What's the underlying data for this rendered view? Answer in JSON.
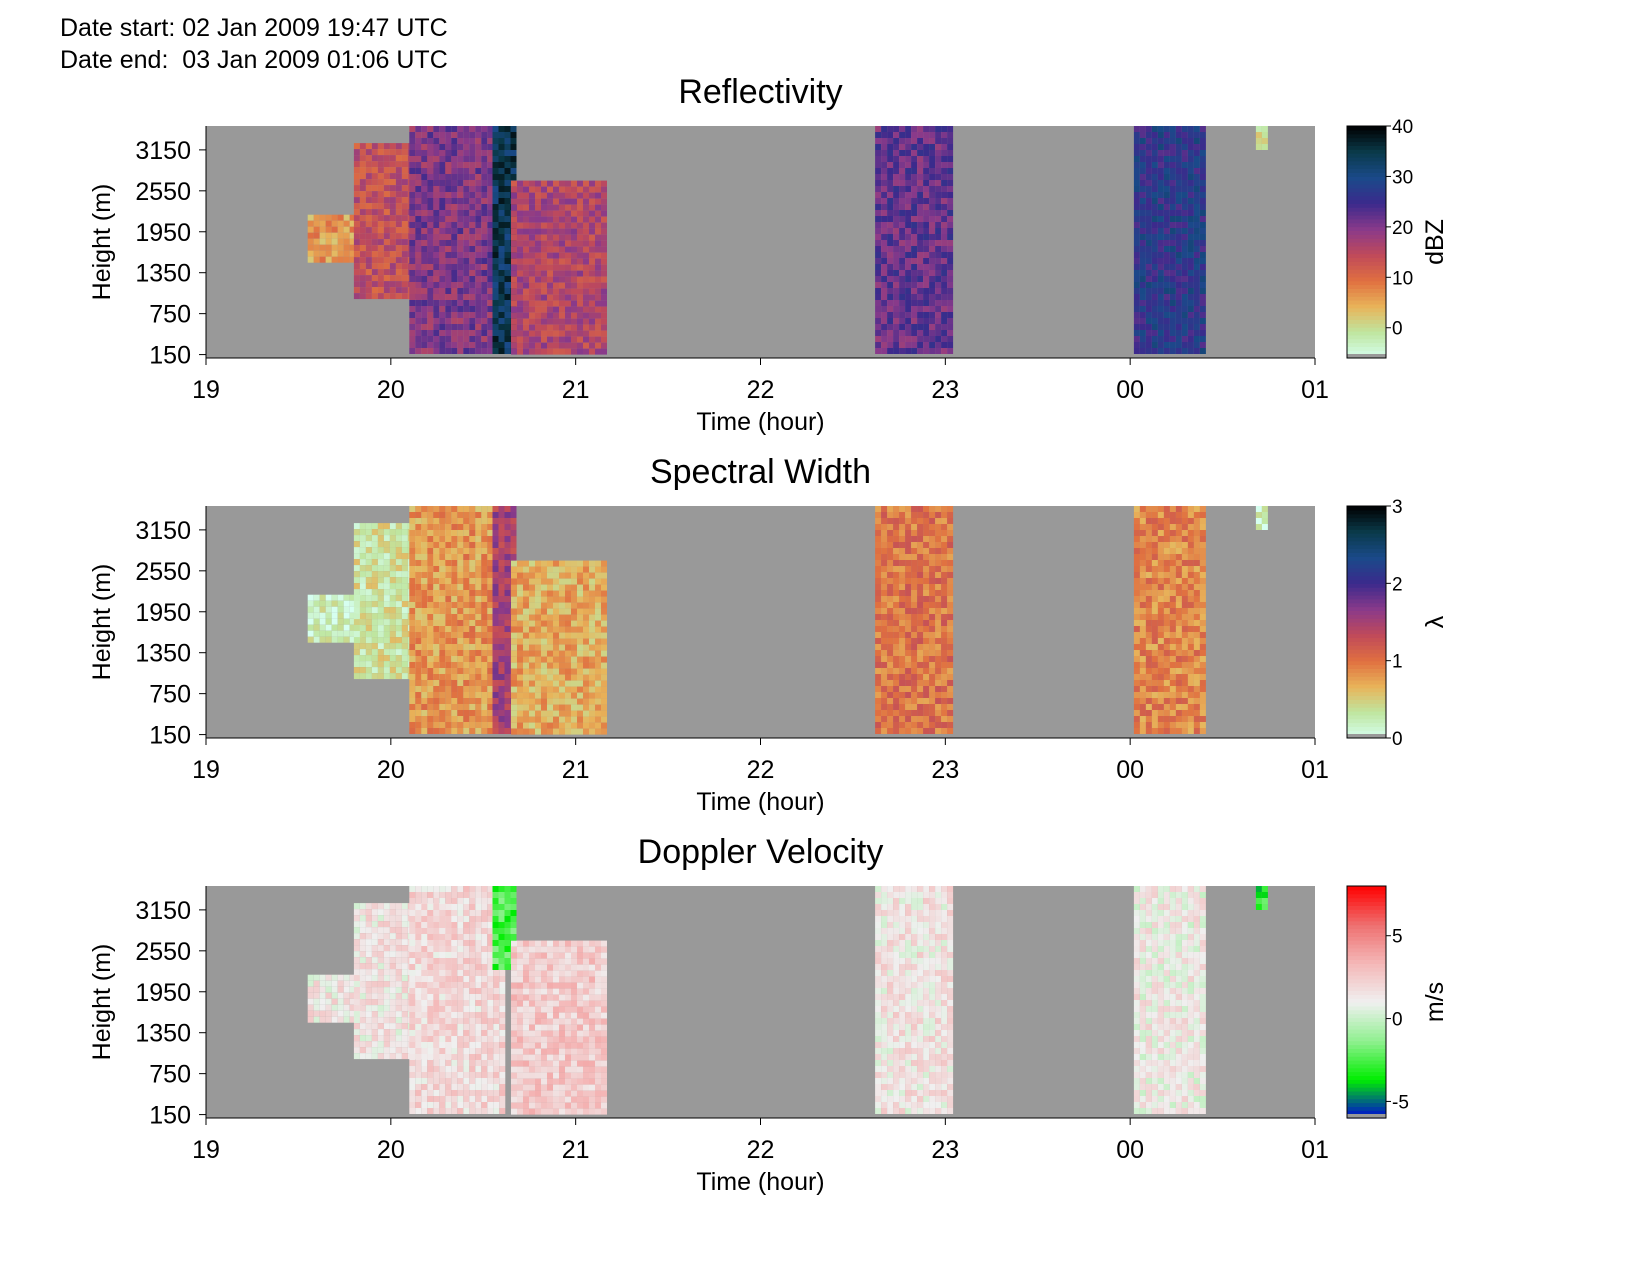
{
  "header": {
    "date_start": "Date start: 02 Jan 2009 19:47 UTC",
    "date_end": "Date end:  03 Jan 2009 01:06 UTC"
  },
  "colors": {
    "background": "#999999",
    "reflectivity_scale": [
      "#d6fff0",
      "#bfe6a0",
      "#e8b45a",
      "#e07040",
      "#c04a5a",
      "#8a3a8a",
      "#3c2a8c",
      "#1a4a8a",
      "#0a3a4a",
      "#000000"
    ],
    "width_scale": [
      "#d6fff0",
      "#bfe6a0",
      "#e8b45a",
      "#e07040",
      "#c04a5a",
      "#8a3a8a",
      "#3c2a8c",
      "#1a4a8a",
      "#0a3a4a",
      "#000000"
    ],
    "velocity_scale": [
      "#0000dd",
      "#00ee00",
      "#90f090",
      "#f0f0f0",
      "#f4b8b8",
      "#ee7070",
      "#ff0000"
    ]
  },
  "chart_data": [
    {
      "type": "heatmap",
      "title": "Reflectivity",
      "xlabel": "Time (hour)",
      "ylabel": "Height (m)",
      "x_ticks": [
        "19",
        "20",
        "21",
        "22",
        "23",
        "00",
        "01"
      ],
      "y_ticks": [
        150,
        750,
        1350,
        1950,
        2550,
        3150
      ],
      "xlim": [
        19.0,
        25.0
      ],
      "ylim": [
        100,
        3500
      ],
      "colorbar": {
        "label": "dBZ",
        "min": -6,
        "max": 40,
        "ticks": [
          0,
          10,
          20,
          30,
          40
        ]
      },
      "echoes": [
        {
          "t_start": 19.55,
          "t_end": 19.82,
          "h_bottom": 1500,
          "h_top": 2200,
          "value": 6
        },
        {
          "t_start": 19.8,
          "t_end": 20.35,
          "h_bottom": 1000,
          "h_top": 3250,
          "value": 14
        },
        {
          "t_start": 20.1,
          "t_end": 20.6,
          "h_bottom": 200,
          "h_top": 3500,
          "value": 20
        },
        {
          "t_start": 20.55,
          "t_end": 20.65,
          "h_bottom": 200,
          "h_top": 3500,
          "value": 34
        },
        {
          "t_start": 20.65,
          "t_end": 21.15,
          "h_bottom": 200,
          "h_top": 2700,
          "value": 16
        },
        {
          "t_start": 22.62,
          "t_end": 23.02,
          "h_bottom": 200,
          "h_top": 3500,
          "value": 22
        },
        {
          "t_start": 24.02,
          "t_end": 24.4,
          "h_bottom": 200,
          "h_top": 3500,
          "value": 27
        },
        {
          "t_start": 24.68,
          "t_end": 24.72,
          "h_bottom": 3200,
          "h_top": 3500,
          "value": 2
        }
      ]
    },
    {
      "type": "heatmap",
      "title": "Spectral Width",
      "xlabel": "Time (hour)",
      "ylabel": "Height (m)",
      "x_ticks": [
        "19",
        "20",
        "21",
        "22",
        "23",
        "00",
        "01"
      ],
      "y_ticks": [
        150,
        750,
        1350,
        1950,
        2550,
        3150
      ],
      "xlim": [
        19.0,
        25.0
      ],
      "ylim": [
        100,
        3500
      ],
      "colorbar": {
        "label": "λ",
        "min": 0,
        "max": 3,
        "ticks": [
          0,
          1,
          2,
          3
        ]
      },
      "echoes": [
        {
          "t_start": 19.55,
          "t_end": 19.82,
          "h_bottom": 1500,
          "h_top": 2200,
          "value": 0.2
        },
        {
          "t_start": 19.8,
          "t_end": 20.35,
          "h_bottom": 1000,
          "h_top": 3250,
          "value": 0.35
        },
        {
          "t_start": 20.1,
          "t_end": 20.6,
          "h_bottom": 200,
          "h_top": 3500,
          "value": 0.8
        },
        {
          "t_start": 20.55,
          "t_end": 20.65,
          "h_bottom": 200,
          "h_top": 3500,
          "value": 1.5
        },
        {
          "t_start": 20.65,
          "t_end": 21.15,
          "h_bottom": 200,
          "h_top": 2700,
          "value": 0.7
        },
        {
          "t_start": 22.62,
          "t_end": 23.02,
          "h_bottom": 200,
          "h_top": 3500,
          "value": 1.0
        },
        {
          "t_start": 24.02,
          "t_end": 24.4,
          "h_bottom": 200,
          "h_top": 3500,
          "value": 0.9
        },
        {
          "t_start": 24.68,
          "t_end": 24.72,
          "h_bottom": 3200,
          "h_top": 3500,
          "value": 0.2
        }
      ]
    },
    {
      "type": "heatmap",
      "title": "Doppler Velocity",
      "xlabel": "Time (hour)",
      "ylabel": "Height (m)",
      "x_ticks": [
        "19",
        "20",
        "21",
        "22",
        "23",
        "00",
        "01"
      ],
      "y_ticks": [
        150,
        750,
        1350,
        1950,
        2550,
        3150
      ],
      "xlim": [
        19.0,
        25.0
      ],
      "ylim": [
        100,
        3500
      ],
      "colorbar": {
        "label": "m/s",
        "min": -6,
        "max": 8,
        "ticks": [
          -5,
          0,
          5
        ]
      },
      "echoes": [
        {
          "t_start": 19.55,
          "t_end": 19.82,
          "h_bottom": 1500,
          "h_top": 2200,
          "value": 1.5
        },
        {
          "t_start": 19.8,
          "t_end": 20.35,
          "h_bottom": 1000,
          "h_top": 3250,
          "value": 1.5
        },
        {
          "t_start": 20.1,
          "t_end": 20.6,
          "h_bottom": 200,
          "h_top": 3500,
          "value": 2
        },
        {
          "t_start": 20.55,
          "t_end": 20.65,
          "h_bottom": 2300,
          "h_top": 3500,
          "value": -2.5
        },
        {
          "t_start": 20.65,
          "t_end": 21.15,
          "h_bottom": 200,
          "h_top": 2700,
          "value": 2.5
        },
        {
          "t_start": 22.62,
          "t_end": 23.02,
          "h_bottom": 200,
          "h_top": 3500,
          "value": 1.5
        },
        {
          "t_start": 24.02,
          "t_end": 24.4,
          "h_bottom": 200,
          "h_top": 3500,
          "value": 1.2
        },
        {
          "t_start": 24.68,
          "t_end": 24.72,
          "h_bottom": 3200,
          "h_top": 3500,
          "value": -3
        }
      ]
    }
  ]
}
